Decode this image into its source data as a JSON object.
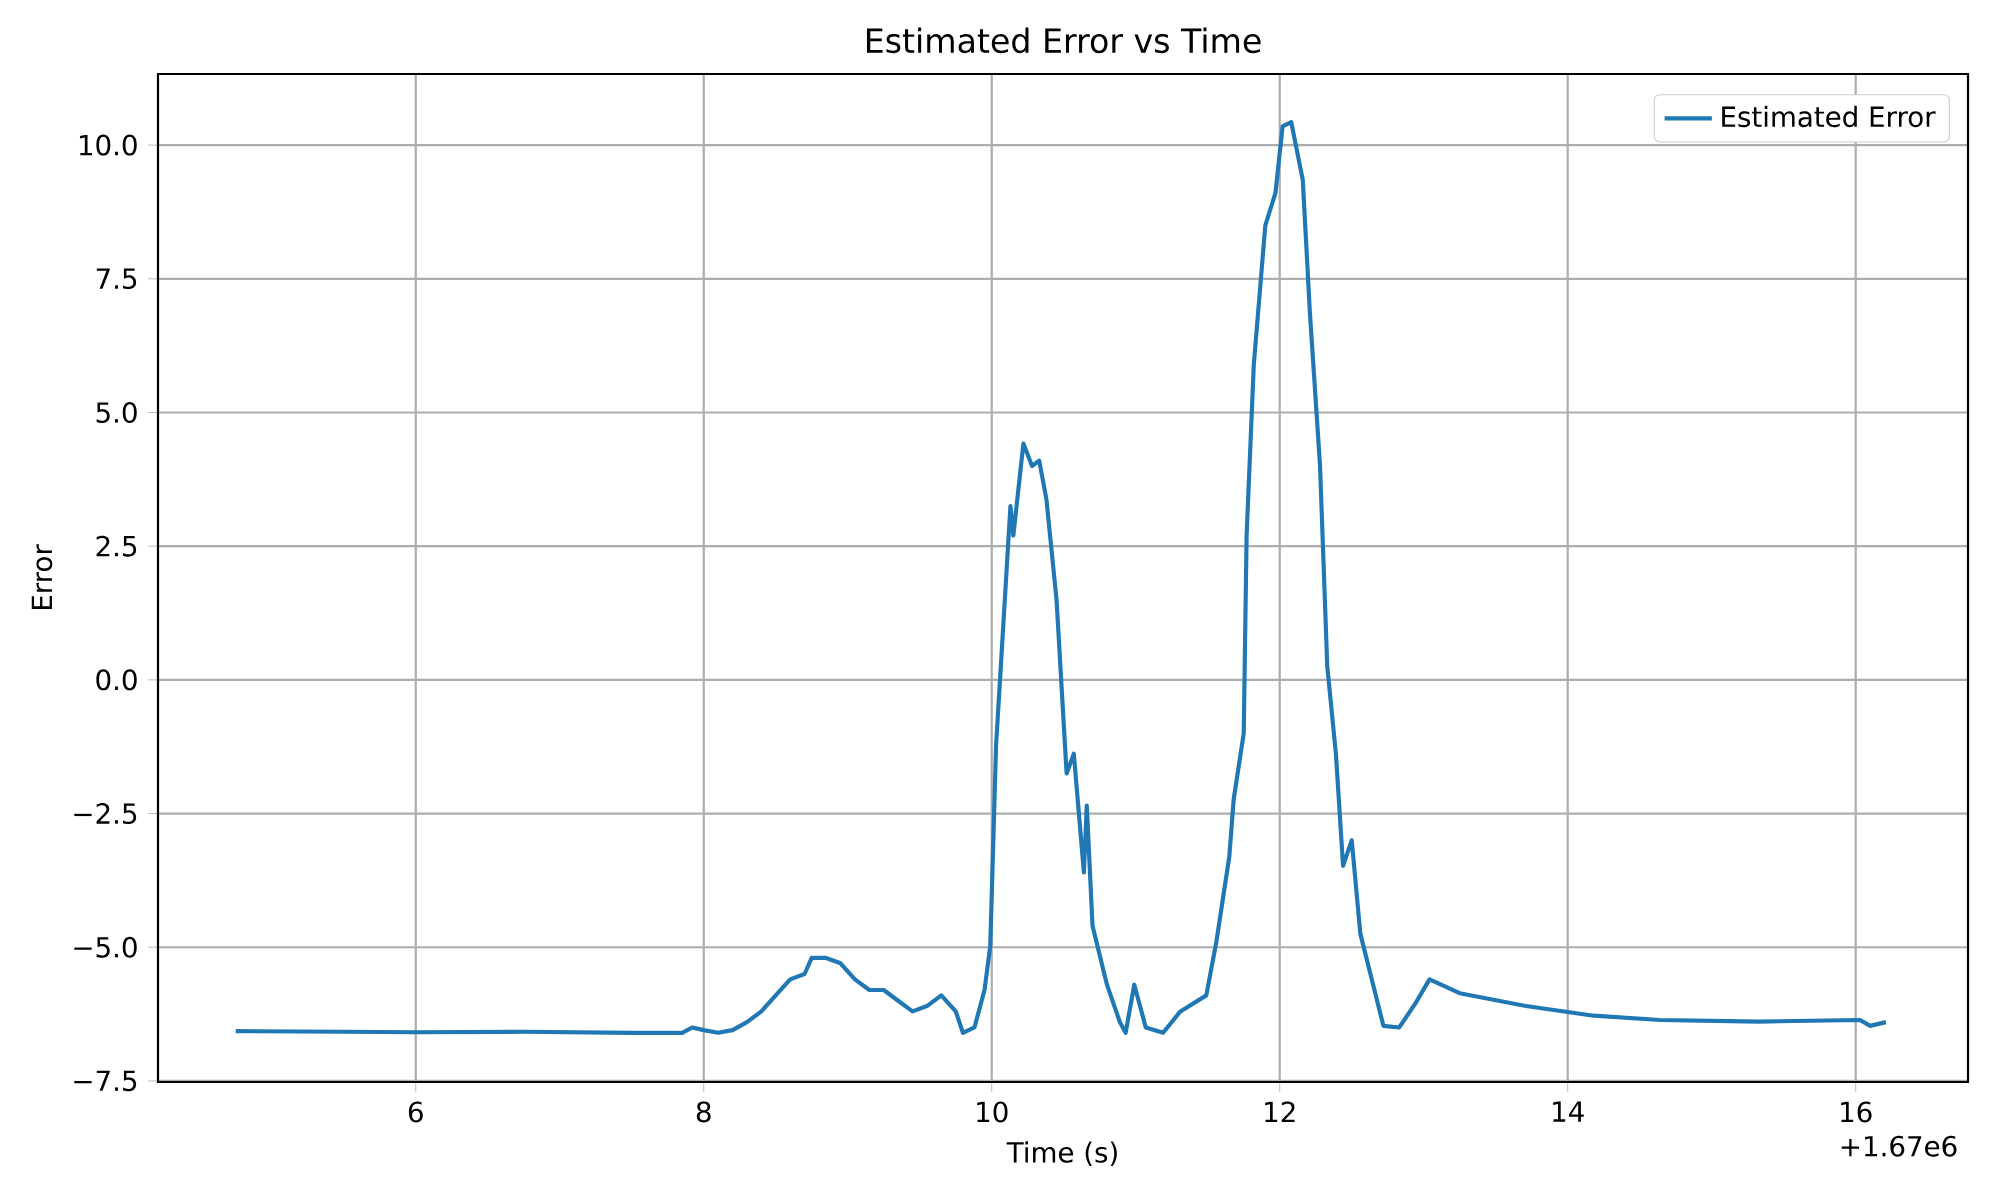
{
  "chart_data": {
    "type": "line",
    "title": "Estimated Error vs Time",
    "xlabel": "Time (s)",
    "ylabel": "Error",
    "annotations": [
      "+1.67e6"
    ],
    "series": [
      {
        "name": "Estimated Error",
        "color": "#1f77b4",
        "x": [
          4.75,
          5.5,
          6.0,
          6.75,
          7.5,
          7.85,
          7.92,
          8.0,
          8.1,
          8.2,
          8.3,
          8.4,
          8.5,
          8.6,
          8.7,
          8.75,
          8.85,
          8.95,
          9.05,
          9.15,
          9.25,
          9.35,
          9.45,
          9.55,
          9.65,
          9.75,
          9.8,
          9.88,
          9.95,
          9.99,
          10.03,
          10.13,
          10.15,
          10.22,
          10.28,
          10.33,
          10.38,
          10.45,
          10.52,
          10.57,
          10.64,
          10.66,
          10.7,
          10.8,
          10.89,
          10.93,
          10.99,
          11.07,
          11.19,
          11.31,
          11.49,
          11.56,
          11.65,
          11.68,
          11.75,
          11.77,
          11.82,
          11.9,
          11.97,
          12.02,
          12.08,
          12.16,
          12.21,
          12.28,
          12.33,
          12.39,
          12.44,
          12.5,
          12.56,
          12.63,
          12.72,
          12.83,
          12.94,
          13.04,
          13.25,
          13.71,
          14.18,
          14.64,
          15.33,
          16.03,
          16.1,
          16.21
        ],
        "values": [
          -6.57,
          -6.58,
          -6.59,
          -6.58,
          -6.6,
          -6.6,
          -6.5,
          -6.55,
          -6.6,
          -6.55,
          -6.4,
          -6.2,
          -5.9,
          -5.6,
          -5.5,
          -5.2,
          -5.2,
          -5.3,
          -5.6,
          -5.8,
          -5.8,
          -6.0,
          -6.2,
          -6.1,
          -5.9,
          -6.2,
          -6.6,
          -6.5,
          -5.8,
          -4.97,
          -1.23,
          3.25,
          2.7,
          4.42,
          4.0,
          4.1,
          3.37,
          1.5,
          -1.75,
          -1.38,
          -3.6,
          -2.35,
          -4.6,
          -5.7,
          -6.4,
          -6.6,
          -5.7,
          -6.5,
          -6.6,
          -6.2,
          -5.9,
          -4.9,
          -3.3,
          -2.24,
          -1.0,
          2.7,
          5.9,
          8.5,
          9.1,
          10.35,
          10.43,
          9.35,
          6.85,
          4.0,
          0.26,
          -1.38,
          -3.48,
          -3.0,
          -4.75,
          -5.5,
          -6.47,
          -6.5,
          -6.06,
          -5.6,
          -5.86,
          -6.1,
          -6.28,
          -6.36,
          -6.39,
          -6.36,
          -6.47,
          -6.4
        ]
      }
    ],
    "xlim": [
      4.21,
      16.78
    ],
    "ylim": [
      -7.52,
      11.33
    ],
    "xticks": [
      6,
      8,
      10,
      12,
      14,
      16
    ],
    "yticks": [
      {
        "value": -7.5,
        "label": "−7.5"
      },
      {
        "value": -5,
        "label": "−5.0"
      },
      {
        "value": -2.5,
        "label": "−2.5"
      },
      {
        "value": 0,
        "label": "0.0"
      },
      {
        "value": 2.5,
        "label": "2.5"
      },
      {
        "value": 5,
        "label": "5.0"
      },
      {
        "value": 7.5,
        "label": "7.5"
      },
      {
        "value": 10,
        "label": "10.0"
      }
    ],
    "grid": true,
    "legend": "top right",
    "marker": "none",
    "line_style": "solid"
  }
}
